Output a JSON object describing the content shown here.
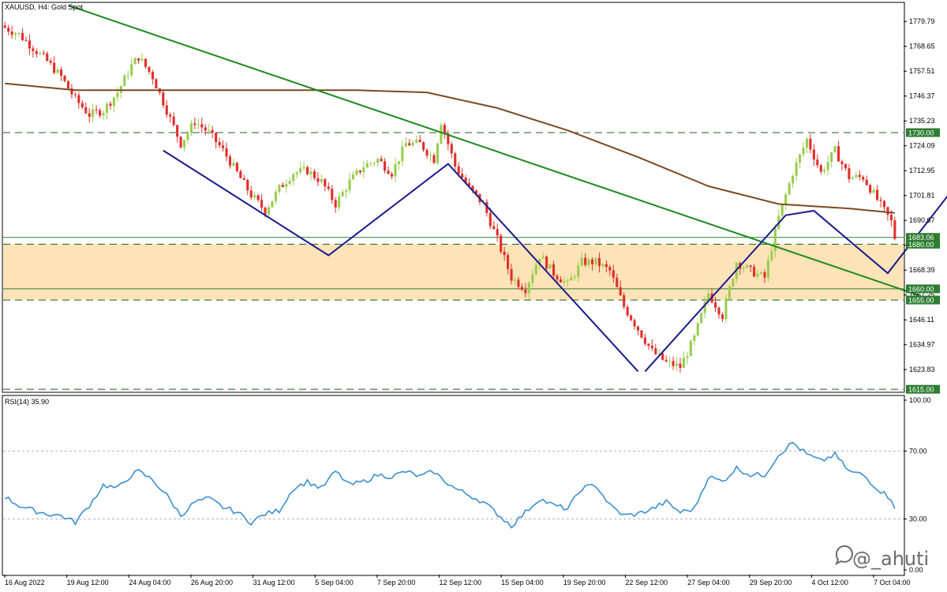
{
  "header": {
    "symbol_line": "XAUUSD, H4:  Gold Spot",
    "rsi_line": "RSI(14) 35.90"
  },
  "watermark": {
    "text": "@_ahuti",
    "icon": "chat-bubble-icon"
  },
  "colors": {
    "bull": "#9acd4f",
    "bear": "#e0302c",
    "ma": "#7a4a22",
    "trend": "#1e8a1e",
    "pattern": "#1a1a8c",
    "zone": "#fde3b8",
    "level_line": "#2e7d32",
    "rsi": "#3d8fd0",
    "tag_bg": "#2e7d32"
  },
  "chart_data": [
    {
      "type": "candlestick",
      "title": "XAUUSD, H4:  Gold Spot",
      "ylim": [
        1614,
        1788
      ],
      "y_ticks": [
        1779.79,
        1768.65,
        1757.51,
        1746.37,
        1735.23,
        1724.09,
        1712.95,
        1701.81,
        1690.67,
        1679.53,
        1668.39,
        1657.25,
        1646.11,
        1634.97,
        1623.83
      ],
      "x_tick_labels": [
        "16 Aug 2022",
        "19 Aug 12:00",
        "24 Aug 04:00",
        "26 Aug 20:00",
        "31 Aug 12:00",
        "5 Sep 04:00",
        "7 Sep 20:00",
        "12 Sep 12:00",
        "15 Sep 04:00",
        "19 Sep 20:00",
        "22 Sep 12:00",
        "27 Sep 04:00",
        "29 Sep 20:00",
        "4 Oct 12:00",
        "7 Oct 04:00"
      ],
      "close_anchors": [
        [
          0,
          1777
        ],
        [
          4,
          1774
        ],
        [
          8,
          1768
        ],
        [
          12,
          1762
        ],
        [
          16,
          1755
        ],
        [
          20,
          1745
        ],
        [
          24,
          1738
        ],
        [
          28,
          1740
        ],
        [
          32,
          1748
        ],
        [
          36,
          1760
        ],
        [
          38,
          1764
        ],
        [
          42,
          1755
        ],
        [
          46,
          1740
        ],
        [
          50,
          1725
        ],
        [
          54,
          1735
        ],
        [
          58,
          1730
        ],
        [
          62,
          1722
        ],
        [
          66,
          1712
        ],
        [
          70,
          1702
        ],
        [
          74,
          1695
        ],
        [
          78,
          1705
        ],
        [
          82,
          1712
        ],
        [
          86,
          1713
        ],
        [
          90,
          1708
        ],
        [
          94,
          1698
        ],
        [
          98,
          1708
        ],
        [
          102,
          1715
        ],
        [
          106,
          1718
        ],
        [
          110,
          1712
        ],
        [
          114,
          1725
        ],
        [
          118,
          1725
        ],
        [
          122,
          1718
        ],
        [
          124,
          1735
        ],
        [
          128,
          1715
        ],
        [
          132,
          1705
        ],
        [
          136,
          1698
        ],
        [
          140,
          1682
        ],
        [
          144,
          1665
        ],
        [
          148,
          1660
        ],
        [
          152,
          1675
        ],
        [
          156,
          1667
        ],
        [
          160,
          1662
        ],
        [
          164,
          1672
        ],
        [
          168,
          1672
        ],
        [
          172,
          1668
        ],
        [
          176,
          1652
        ],
        [
          180,
          1642
        ],
        [
          184,
          1632
        ],
        [
          188,
          1627
        ],
        [
          192,
          1625
        ],
        [
          196,
          1638
        ],
        [
          200,
          1658
        ],
        [
          204,
          1648
        ],
        [
          208,
          1672
        ],
        [
          212,
          1668
        ],
        [
          216,
          1665
        ],
        [
          220,
          1692
        ],
        [
          224,
          1712
        ],
        [
          228,
          1727
        ],
        [
          232,
          1712
        ],
        [
          236,
          1722
        ],
        [
          240,
          1710
        ],
        [
          244,
          1710
        ],
        [
          248,
          1700
        ],
        [
          252,
          1690
        ],
        [
          253,
          1683
        ]
      ],
      "series": [
        {
          "name": "MA",
          "x": [
            0,
            20,
            40,
            60,
            80,
            100,
            120,
            140,
            160,
            180,
            200,
            220,
            240,
            253
          ],
          "values": [
            1752,
            1749,
            1749,
            1749,
            1749,
            1749,
            1748,
            1741,
            1731,
            1719,
            1706,
            1698,
            1696,
            1694
          ]
        }
      ],
      "overlays": {
        "trendline": {
          "from": [
            18,
            1787
          ],
          "to": [
            260,
            1657
          ]
        },
        "pattern_left": {
          "points": [
            [
              45,
              1722
            ],
            [
              92,
              1675
            ],
            [
              126,
              1716
            ],
            [
              180,
              1623
            ]
          ]
        },
        "pattern_right": {
          "points": [
            [
              182,
              1623
            ],
            [
              222,
              1693
            ],
            [
              230,
              1695
            ],
            [
              251,
              1667
            ],
            [
              280,
              1726
            ]
          ]
        }
      },
      "levels": [
        {
          "label": "1730.00",
          "value": 1730.0,
          "style": "dashed",
          "tag": true
        },
        {
          "label": "1683.06",
          "value": 1683.06,
          "style": "solid",
          "tag": true
        },
        {
          "label": "1680.00",
          "value": 1680.0,
          "style": "dashed",
          "tag": true
        },
        {
          "label": "1660.00",
          "value": 1660.0,
          "style": "solid",
          "tag": true
        },
        {
          "label": "1657.25",
          "value": 1657.25,
          "style": "none",
          "tag": false
        },
        {
          "label": "1655.00",
          "value": 1655.0,
          "style": "dashed",
          "tag": true
        },
        {
          "label": "1615.00",
          "value": 1615.0,
          "style": "dashed",
          "tag": true
        }
      ],
      "zone": {
        "from": 1655,
        "to": 1680
      }
    },
    {
      "type": "line",
      "title": "RSI(14) 35.90",
      "ylim": [
        0,
        100
      ],
      "y_ticks": [
        "100.00",
        "70.00",
        "30.00",
        "0.00"
      ],
      "levels": [
        70,
        30
      ],
      "rsi_anchors": [
        [
          0,
          43
        ],
        [
          4,
          38
        ],
        [
          8,
          35
        ],
        [
          12,
          33
        ],
        [
          16,
          32
        ],
        [
          20,
          28
        ],
        [
          24,
          38
        ],
        [
          28,
          50
        ],
        [
          32,
          48
        ],
        [
          36,
          56
        ],
        [
          38,
          58
        ],
        [
          42,
          53
        ],
        [
          46,
          44
        ],
        [
          50,
          32
        ],
        [
          54,
          40
        ],
        [
          58,
          42
        ],
        [
          62,
          37
        ],
        [
          66,
          34
        ],
        [
          70,
          28
        ],
        [
          74,
          33
        ],
        [
          78,
          35
        ],
        [
          82,
          48
        ],
        [
          86,
          52
        ],
        [
          90,
          48
        ],
        [
          94,
          58
        ],
        [
          98,
          50
        ],
        [
          102,
          52
        ],
        [
          106,
          56
        ],
        [
          110,
          55
        ],
        [
          114,
          58
        ],
        [
          118,
          55
        ],
        [
          122,
          58
        ],
        [
          124,
          54
        ],
        [
          128,
          48
        ],
        [
          132,
          44
        ],
        [
          136,
          40
        ],
        [
          140,
          33
        ],
        [
          144,
          26
        ],
        [
          148,
          34
        ],
        [
          152,
          42
        ],
        [
          156,
          38
        ],
        [
          160,
          36
        ],
        [
          164,
          48
        ],
        [
          168,
          50
        ],
        [
          172,
          38
        ],
        [
          176,
          32
        ],
        [
          180,
          33
        ],
        [
          184,
          36
        ],
        [
          188,
          40
        ],
        [
          192,
          34
        ],
        [
          196,
          36
        ],
        [
          200,
          55
        ],
        [
          204,
          52
        ],
        [
          208,
          60
        ],
        [
          212,
          56
        ],
        [
          216,
          56
        ],
        [
          220,
          68
        ],
        [
          224,
          75
        ],
        [
          228,
          68
        ],
        [
          232,
          64
        ],
        [
          236,
          68
        ],
        [
          240,
          58
        ],
        [
          244,
          56
        ],
        [
          248,
          48
        ],
        [
          252,
          42
        ],
        [
          253,
          37
        ]
      ]
    }
  ]
}
